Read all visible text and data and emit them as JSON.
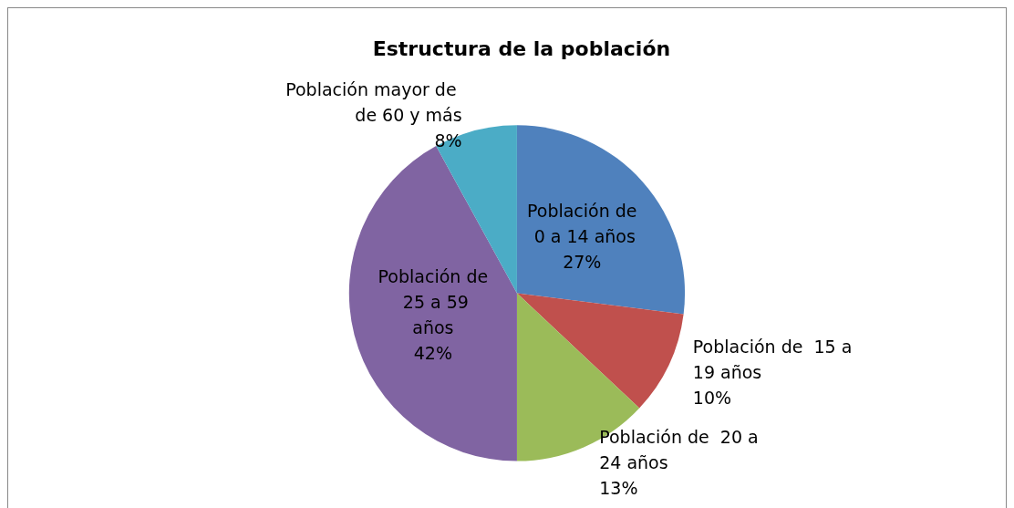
{
  "chart_data": {
    "type": "pie",
    "title": "Estructura de la población",
    "categories": [
      "Población de 0 a 14 años",
      "Población de  15 a 19 años",
      "Población de  20 a 24 años",
      "Población de  25 a 59 años",
      "Población mayor de de 60 y más"
    ],
    "values": [
      27,
      10,
      13,
      42,
      8
    ],
    "value_labels": [
      "27%",
      "10%",
      "13%",
      "42%",
      "8%"
    ],
    "colors": [
      "#4f81bd",
      "#c0504d",
      "#9bbb59",
      "#8064a2",
      "#4bacc6"
    ],
    "legend": false
  }
}
